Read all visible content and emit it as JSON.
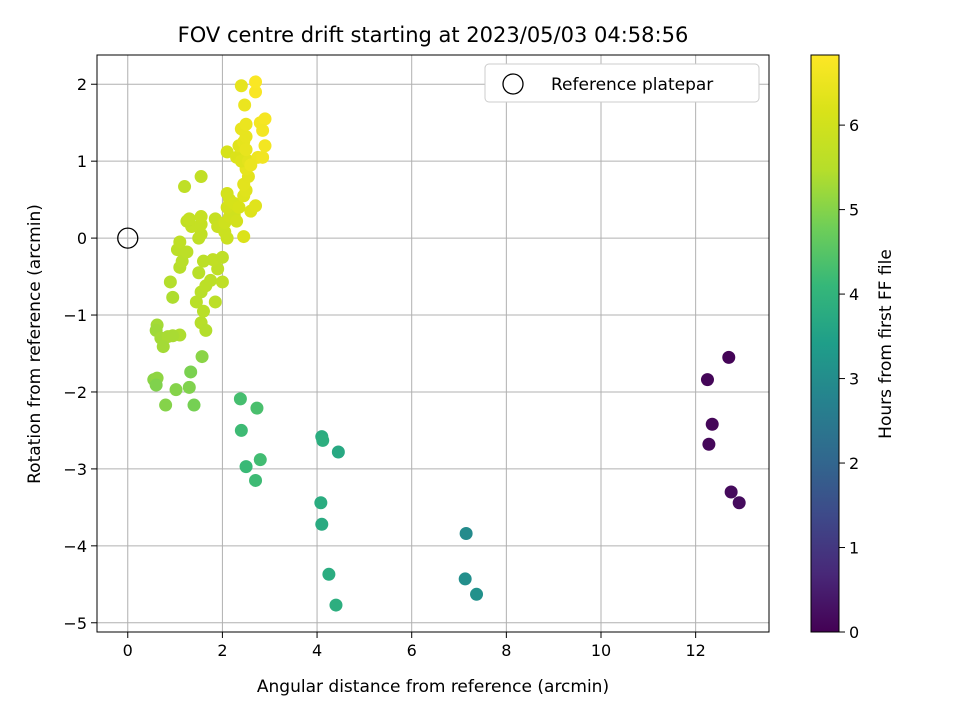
{
  "chart_data": {
    "type": "scatter",
    "title": "FOV centre drift starting at 2023/05/03 04:58:56",
    "xlabel": "Angular distance from reference (arcmin)",
    "ylabel": "Rotation from reference (arcmin)",
    "xlim": [
      -0.65,
      13.55
    ],
    "ylim": [
      -5.12,
      2.38
    ],
    "xticks": [
      0,
      2,
      4,
      6,
      8,
      10,
      12
    ],
    "yticks": [
      -5,
      -4,
      -3,
      -2,
      -1,
      0,
      1,
      2
    ],
    "grid": true,
    "colormap": "viridis",
    "colorbar": {
      "label": "Hours from first FF file",
      "range": [
        0,
        6.83
      ],
      "ticks": [
        0,
        1,
        2,
        3,
        4,
        5,
        6
      ]
    },
    "legend": {
      "position": "top-right",
      "entries": [
        {
          "label": "Reference platepar",
          "marker": "hollow-circle"
        }
      ]
    },
    "reference_point": {
      "x": 0,
      "y": 0
    },
    "points": [
      {
        "x": 12.7,
        "y": -1.55,
        "t": 0.05
      },
      {
        "x": 12.25,
        "y": -1.84,
        "t": 0.08
      },
      {
        "x": 12.35,
        "y": -2.42,
        "t": 0.1
      },
      {
        "x": 12.28,
        "y": -2.68,
        "t": 0.12
      },
      {
        "x": 12.75,
        "y": -3.3,
        "t": 0.15
      },
      {
        "x": 12.92,
        "y": -3.44,
        "t": 0.18
      },
      {
        "x": 7.15,
        "y": -3.84,
        "t": 2.95
      },
      {
        "x": 7.13,
        "y": -4.43,
        "t": 3.05
      },
      {
        "x": 7.37,
        "y": -4.63,
        "t": 3.1
      },
      {
        "x": 4.1,
        "y": -2.58,
        "t": 3.8
      },
      {
        "x": 4.12,
        "y": -2.63,
        "t": 3.85
      },
      {
        "x": 4.45,
        "y": -2.78,
        "t": 3.7
      },
      {
        "x": 4.08,
        "y": -3.44,
        "t": 3.8
      },
      {
        "x": 4.1,
        "y": -3.72,
        "t": 3.75
      },
      {
        "x": 4.25,
        "y": -4.37,
        "t": 3.8
      },
      {
        "x": 4.4,
        "y": -4.77,
        "t": 3.85
      },
      {
        "x": 2.38,
        "y": -2.09,
        "t": 4.3
      },
      {
        "x": 2.73,
        "y": -2.21,
        "t": 4.35
      },
      {
        "x": 2.4,
        "y": -2.5,
        "t": 4.2
      },
      {
        "x": 2.5,
        "y": -2.97,
        "t": 4.15
      },
      {
        "x": 2.8,
        "y": -2.88,
        "t": 4.25
      },
      {
        "x": 2.7,
        "y": -3.15,
        "t": 4.2
      },
      {
        "x": 1.57,
        "y": -1.54,
        "t": 5.05
      },
      {
        "x": 1.33,
        "y": -1.74,
        "t": 4.9
      },
      {
        "x": 1.3,
        "y": -1.94,
        "t": 4.95
      },
      {
        "x": 1.02,
        "y": -1.97,
        "t": 5.0
      },
      {
        "x": 0.8,
        "y": -2.17,
        "t": 5.0
      },
      {
        "x": 1.4,
        "y": -2.17,
        "t": 4.85
      },
      {
        "x": 0.55,
        "y": -1.84,
        "t": 5.05
      },
      {
        "x": 0.62,
        "y": -1.82,
        "t": 5.1
      },
      {
        "x": 0.6,
        "y": -1.91,
        "t": 4.95
      },
      {
        "x": 0.62,
        "y": -1.13,
        "t": 5.3
      },
      {
        "x": 0.6,
        "y": -1.2,
        "t": 5.25
      },
      {
        "x": 0.7,
        "y": -1.3,
        "t": 5.3
      },
      {
        "x": 0.85,
        "y": -1.28,
        "t": 5.35
      },
      {
        "x": 0.75,
        "y": -1.41,
        "t": 5.3
      },
      {
        "x": 1.1,
        "y": -1.26,
        "t": 5.4
      },
      {
        "x": 0.95,
        "y": -1.27,
        "t": 5.35
      },
      {
        "x": 0.9,
        "y": -0.57,
        "t": 5.45
      },
      {
        "x": 0.95,
        "y": -0.77,
        "t": 5.4
      },
      {
        "x": 1.55,
        "y": -1.1,
        "t": 5.5
      },
      {
        "x": 1.65,
        "y": -1.2,
        "t": 5.45
      },
      {
        "x": 1.6,
        "y": -0.95,
        "t": 5.55
      },
      {
        "x": 1.45,
        "y": -0.83,
        "t": 5.55
      },
      {
        "x": 1.85,
        "y": -0.83,
        "t": 5.6
      },
      {
        "x": 1.55,
        "y": -0.7,
        "t": 5.55
      },
      {
        "x": 1.65,
        "y": -0.62,
        "t": 5.6
      },
      {
        "x": 1.75,
        "y": -0.55,
        "t": 5.6
      },
      {
        "x": 2.0,
        "y": -0.57,
        "t": 5.65
      },
      {
        "x": 1.5,
        "y": -0.45,
        "t": 5.55
      },
      {
        "x": 1.9,
        "y": -0.4,
        "t": 5.65
      },
      {
        "x": 1.8,
        "y": -0.28,
        "t": 5.7
      },
      {
        "x": 2.0,
        "y": -0.25,
        "t": 5.65
      },
      {
        "x": 1.6,
        "y": -0.3,
        "t": 5.6
      },
      {
        "x": 1.1,
        "y": -0.38,
        "t": 5.5
      },
      {
        "x": 1.15,
        "y": -0.3,
        "t": 5.55
      },
      {
        "x": 1.05,
        "y": -0.15,
        "t": 5.6
      },
      {
        "x": 1.25,
        "y": -0.18,
        "t": 5.6
      },
      {
        "x": 1.1,
        "y": -0.05,
        "t": 5.65
      },
      {
        "x": 1.5,
        "y": 0.0,
        "t": 5.65
      },
      {
        "x": 1.55,
        "y": 0.05,
        "t": 5.7
      },
      {
        "x": 1.35,
        "y": 0.15,
        "t": 5.75
      },
      {
        "x": 1.55,
        "y": 0.18,
        "t": 5.75
      },
      {
        "x": 1.25,
        "y": 0.22,
        "t": 5.7
      },
      {
        "x": 1.3,
        "y": 0.25,
        "t": 5.75
      },
      {
        "x": 1.55,
        "y": 0.28,
        "t": 5.8
      },
      {
        "x": 1.85,
        "y": 0.25,
        "t": 5.8
      },
      {
        "x": 1.9,
        "y": 0.15,
        "t": 5.85
      },
      {
        "x": 2.05,
        "y": 0.08,
        "t": 5.9
      },
      {
        "x": 2.1,
        "y": 0.0,
        "t": 5.9
      },
      {
        "x": 2.05,
        "y": 0.2,
        "t": 5.95
      },
      {
        "x": 2.15,
        "y": 0.28,
        "t": 6.0
      },
      {
        "x": 2.25,
        "y": 0.3,
        "t": 6.0
      },
      {
        "x": 2.3,
        "y": 0.22,
        "t": 6.05
      },
      {
        "x": 2.1,
        "y": 0.4,
        "t": 6.05
      },
      {
        "x": 2.15,
        "y": 0.5,
        "t": 6.1
      },
      {
        "x": 2.1,
        "y": 0.58,
        "t": 6.05
      },
      {
        "x": 2.25,
        "y": 0.45,
        "t": 6.1
      },
      {
        "x": 2.35,
        "y": 0.4,
        "t": 6.15
      },
      {
        "x": 2.45,
        "y": 0.02,
        "t": 6.2
      },
      {
        "x": 2.6,
        "y": 0.35,
        "t": 6.25
      },
      {
        "x": 2.7,
        "y": 0.42,
        "t": 6.3
      },
      {
        "x": 2.45,
        "y": 0.55,
        "t": 6.25
      },
      {
        "x": 2.5,
        "y": 0.62,
        "t": 6.3
      },
      {
        "x": 2.45,
        "y": 0.7,
        "t": 6.35
      },
      {
        "x": 2.55,
        "y": 0.8,
        "t": 6.35
      },
      {
        "x": 2.5,
        "y": 0.9,
        "t": 6.4
      },
      {
        "x": 1.55,
        "y": 0.8,
        "t": 5.7
      },
      {
        "x": 1.2,
        "y": 0.67,
        "t": 5.65
      },
      {
        "x": 2.1,
        "y": 1.12,
        "t": 6.1
      },
      {
        "x": 2.3,
        "y": 1.05,
        "t": 6.2
      },
      {
        "x": 2.4,
        "y": 1.0,
        "t": 6.25
      },
      {
        "x": 2.55,
        "y": 1.0,
        "t": 6.35
      },
      {
        "x": 2.35,
        "y": 1.2,
        "t": 6.3
      },
      {
        "x": 2.45,
        "y": 1.25,
        "t": 6.4
      },
      {
        "x": 2.5,
        "y": 1.32,
        "t": 6.45
      },
      {
        "x": 2.4,
        "y": 1.42,
        "t": 6.45
      },
      {
        "x": 2.5,
        "y": 1.48,
        "t": 6.5
      },
      {
        "x": 2.75,
        "y": 1.05,
        "t": 6.55
      },
      {
        "x": 2.85,
        "y": 1.05,
        "t": 6.6
      },
      {
        "x": 2.9,
        "y": 1.2,
        "t": 6.65
      },
      {
        "x": 2.8,
        "y": 1.5,
        "t": 6.65
      },
      {
        "x": 2.9,
        "y": 1.55,
        "t": 6.7
      },
      {
        "x": 2.85,
        "y": 1.4,
        "t": 6.65
      },
      {
        "x": 2.7,
        "y": 1.9,
        "t": 6.75
      },
      {
        "x": 2.7,
        "y": 2.03,
        "t": 6.78
      },
      {
        "x": 2.4,
        "y": 1.98,
        "t": 6.4
      },
      {
        "x": 2.47,
        "y": 1.73,
        "t": 6.5
      },
      {
        "x": 2.5,
        "y": 1.15,
        "t": 6.45
      },
      {
        "x": 2.6,
        "y": 0.95,
        "t": 6.5
      }
    ]
  }
}
